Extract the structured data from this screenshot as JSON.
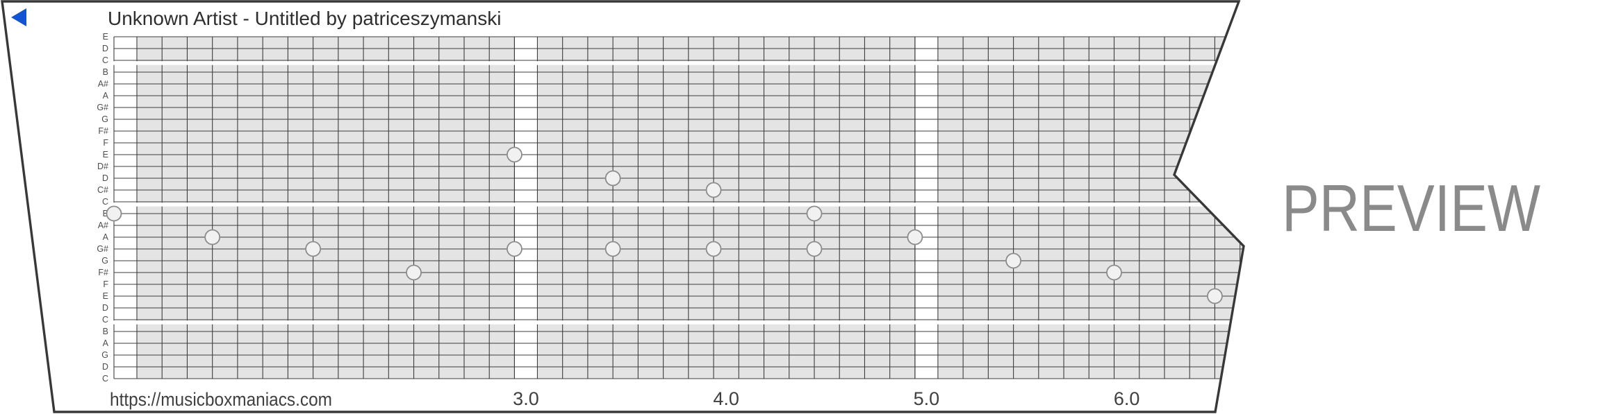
{
  "header": {
    "title": "Unknown Artist - Untitled by patriceszymanski",
    "back_icon": "blue-left-triangle"
  },
  "watermark": {
    "text": "PREVIEW"
  },
  "footer": {
    "url": "https://musicboxmaniacs.com"
  },
  "timeline": {
    "markers": [
      "3.0",
      "4.0",
      "5.0",
      "6.0"
    ]
  },
  "strip": {
    "note_lines": [
      "E",
      "D",
      "C",
      "B",
      "A#",
      "A",
      "G#",
      "G",
      "F#",
      "F",
      "E",
      "D#",
      "D",
      "C#",
      "C",
      "B",
      "A#",
      "A",
      "G#",
      "G",
      "F#",
      "F",
      "E",
      "D",
      "C",
      "B",
      "A",
      "G",
      "D",
      "C"
    ],
    "octave_breaks_after": [
      2,
      14,
      24
    ],
    "notes": [
      {
        "step": 0,
        "line": 15,
        "pitch": "B"
      },
      {
        "step": 1,
        "line": 17,
        "pitch": "A"
      },
      {
        "step": 2,
        "line": 18,
        "pitch": "G#"
      },
      {
        "step": 3,
        "line": 20,
        "pitch": "F#"
      },
      {
        "step": 4,
        "line": 10,
        "pitch": "E"
      },
      {
        "step": 4,
        "line": 18,
        "pitch": "G#"
      },
      {
        "step": 5,
        "line": 12,
        "pitch": "D"
      },
      {
        "step": 5,
        "line": 18,
        "pitch": "G#"
      },
      {
        "step": 6,
        "line": 13,
        "pitch": "C#"
      },
      {
        "step": 6,
        "line": 18,
        "pitch": "G#"
      },
      {
        "step": 7,
        "line": 15,
        "pitch": "B"
      },
      {
        "step": 7,
        "line": 18,
        "pitch": "G#"
      },
      {
        "step": 8,
        "line": 17,
        "pitch": "A"
      },
      {
        "step": 9,
        "line": 19,
        "pitch": "G"
      },
      {
        "step": 10,
        "line": 20,
        "pitch": "F#"
      },
      {
        "step": 11,
        "line": 22,
        "pitch": "E"
      }
    ],
    "colors": {
      "cell": "#e4e4e4",
      "grid_line": "#3d3d3d",
      "border": "#383838",
      "dot_fill": "#f1f1f1",
      "dot_stroke": "#8c8c8c",
      "accent_blue": "#1155d4",
      "title_text": "#2e2e2e",
      "footer_text": "#3f3f3f",
      "label_text": "#4d4d4d",
      "watermark_text": "#8a8a8a"
    }
  }
}
